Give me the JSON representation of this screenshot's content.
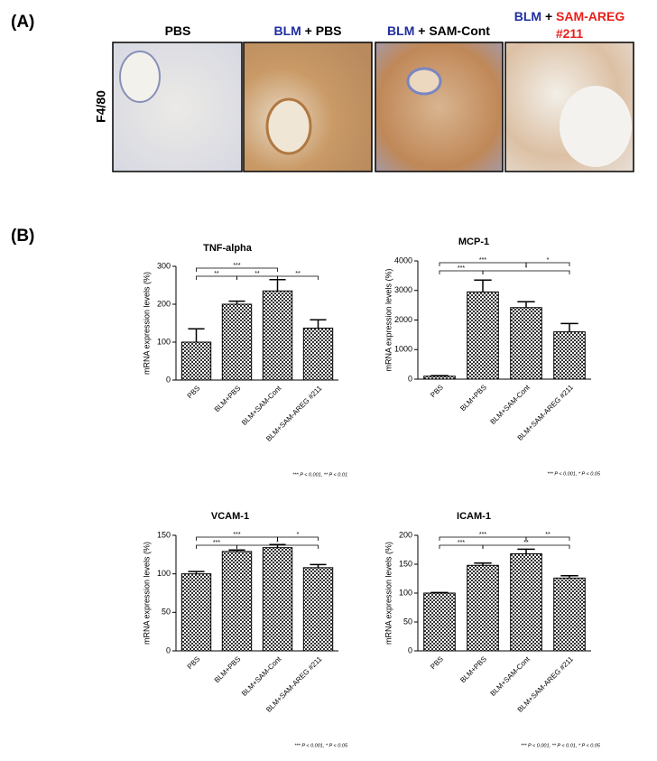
{
  "panel_a": {
    "label": "(A)",
    "row_label": "F4/80",
    "columns": [
      [
        [
          {
            "text": "PBS",
            "color": "#000000"
          }
        ]
      ],
      [
        [
          {
            "text": "BLM",
            "color": "#1f2ea0"
          },
          {
            "text": " + PBS",
            "color": "#000000"
          }
        ]
      ],
      [
        [
          {
            "text": "BLM",
            "color": "#1f2ea0"
          },
          {
            "text": " + SAM-Cont",
            "color": "#000000"
          }
        ]
      ],
      [
        [
          {
            "text": "BLM",
            "color": "#1f2ea0"
          },
          {
            "text": " + ",
            "color": "#000000"
          },
          {
            "text": "SAM-AREG",
            "color": "#e8201c"
          }
        ],
        [
          {
            "text": "#211",
            "color": "#e8201c"
          }
        ]
      ]
    ]
  },
  "panel_b_label": "(B)",
  "chart_data": [
    {
      "type": "bar",
      "title": "TNF-alpha",
      "y_label": "mRNA expression levels (%)",
      "categories": [
        "PBS",
        "BLM+PBS",
        "BLM+SAM-Cont",
        "BLM+SAM-AREG #211"
      ],
      "values": [
        100,
        200,
        235,
        137
      ],
      "errors": [
        35,
        8,
        30,
        22
      ],
      "ylim": [
        0,
        300
      ],
      "yticks": [
        0,
        100,
        200,
        300
      ],
      "brackets": [
        {
          "from": 0,
          "to": 2,
          "level": 1,
          "label": "***"
        },
        {
          "from": 0,
          "to": 1,
          "level": 0,
          "label": "**"
        },
        {
          "from": 1,
          "to": 2,
          "level": 0,
          "label": "**"
        },
        {
          "from": 2,
          "to": 3,
          "level": 0,
          "label": "**"
        }
      ],
      "footnote": "*** P < 0.001, ** P < 0.01"
    },
    {
      "type": "bar",
      "title": "MCP-1",
      "y_label": "mRNA expression levels (%)",
      "categories": [
        "PBS",
        "BLM+PBS",
        "BLM+SAM-Cont",
        "BLM+SAM-AREG #211"
      ],
      "values": [
        100,
        2950,
        2420,
        1600
      ],
      "errors": [
        20,
        400,
        200,
        280
      ],
      "ylim": [
        0,
        4000
      ],
      "yticks": [
        0,
        1000,
        2000,
        3000,
        4000
      ],
      "brackets": [
        {
          "from": 0,
          "to": 2,
          "level": 1,
          "label": "***"
        },
        {
          "from": 2,
          "to": 3,
          "level": 1,
          "label": "*"
        },
        {
          "from": 0,
          "to": 1,
          "level": 0,
          "label": "***"
        },
        {
          "from": 1,
          "to": 3,
          "level": 0,
          "label": "*"
        }
      ],
      "footnote": "*** P < 0.001, * P < 0.05"
    },
    {
      "type": "bar",
      "title": "VCAM-1",
      "y_label": "mRNA expression levels (%)",
      "categories": [
        "PBS",
        "BLM+PBS",
        "BLM+SAM-Cont",
        "BLM+SAM-AREG #211"
      ],
      "values": [
        100,
        129,
        134,
        108
      ],
      "errors": [
        3,
        2,
        4,
        4
      ],
      "ylim": [
        0,
        150
      ],
      "yticks": [
        0,
        50,
        100,
        150
      ],
      "brackets": [
        {
          "from": 0,
          "to": 2,
          "level": 1,
          "label": "***"
        },
        {
          "from": 2,
          "to": 3,
          "level": 1,
          "label": "*"
        },
        {
          "from": 0,
          "to": 1,
          "level": 0,
          "label": "***"
        },
        {
          "from": 1,
          "to": 3,
          "level": 0,
          "label": "*"
        }
      ],
      "footnote": "*** P < 0.001, * P < 0.05"
    },
    {
      "type": "bar",
      "title": "ICAM-1",
      "y_label": "mRNA expression levels (%)",
      "categories": [
        "PBS",
        "BLM+PBS",
        "BLM+SAM-Cont",
        "BLM+SAM-AREG #211"
      ],
      "values": [
        100,
        148,
        168,
        126
      ],
      "errors": [
        1,
        4,
        8,
        4
      ],
      "ylim": [
        0,
        200
      ],
      "yticks": [
        0,
        50,
        100,
        150,
        200
      ],
      "brackets": [
        {
          "from": 0,
          "to": 2,
          "level": 1,
          "label": "***"
        },
        {
          "from": 2,
          "to": 3,
          "level": 1,
          "label": "**"
        },
        {
          "from": 0,
          "to": 1,
          "level": 0,
          "label": "***"
        },
        {
          "from": 1,
          "to": 3,
          "level": 0,
          "label": "**"
        }
      ],
      "footnote": "*** P < 0.001, ** P < 0.01, * P < 0.05"
    }
  ]
}
